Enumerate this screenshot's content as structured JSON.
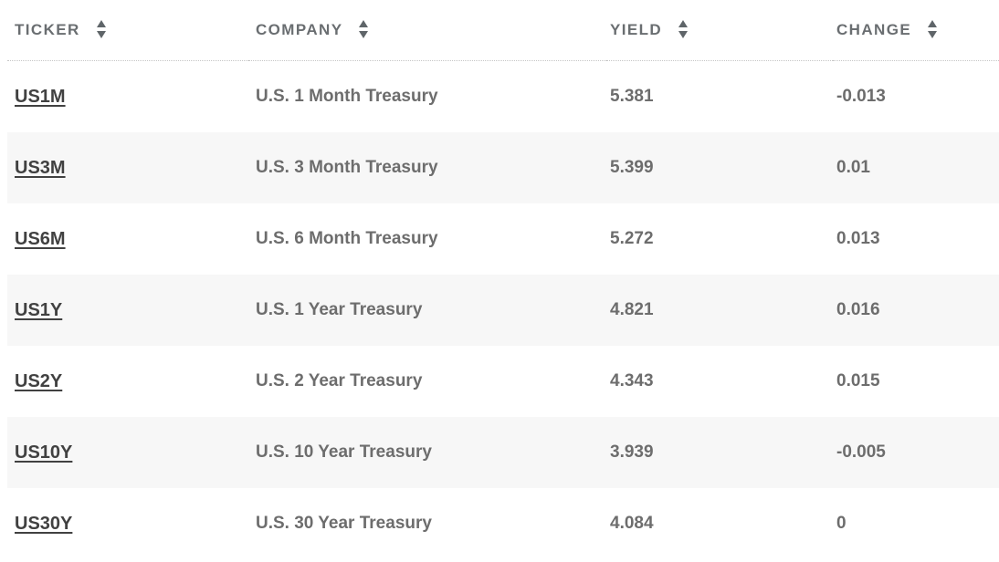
{
  "table": {
    "columns": [
      {
        "label": "TICKER"
      },
      {
        "label": "COMPANY"
      },
      {
        "label": "YIELD"
      },
      {
        "label": "CHANGE"
      }
    ],
    "sort_icon": "up-down-triangles",
    "rows": [
      {
        "ticker": "US1M",
        "company": "U.S. 1 Month Treasury",
        "yield": "5.381",
        "change": "-0.013"
      },
      {
        "ticker": "US3M",
        "company": "U.S. 3 Month Treasury",
        "yield": "5.399",
        "change": "0.01"
      },
      {
        "ticker": "US6M",
        "company": "U.S. 6 Month Treasury",
        "yield": "5.272",
        "change": "0.013"
      },
      {
        "ticker": "US1Y",
        "company": "U.S. 1 Year Treasury",
        "yield": "4.821",
        "change": "0.016"
      },
      {
        "ticker": "US2Y",
        "company": "U.S. 2 Year Treasury",
        "yield": "4.343",
        "change": "0.015"
      },
      {
        "ticker": "US10Y",
        "company": "U.S. 10 Year Treasury",
        "yield": "3.939",
        "change": "-0.005"
      },
      {
        "ticker": "US30Y",
        "company": "U.S. 30 Year Treasury",
        "yield": "4.084",
        "change": "0"
      }
    ],
    "colors": {
      "zebra_row_bg": "#f7f7f7",
      "header_text": "#6a6e71",
      "ticker_text": "#414141",
      "value_text": "#6d6d6d",
      "sort_icon": "#5f6569",
      "header_divider": "#c6c6c6"
    }
  }
}
